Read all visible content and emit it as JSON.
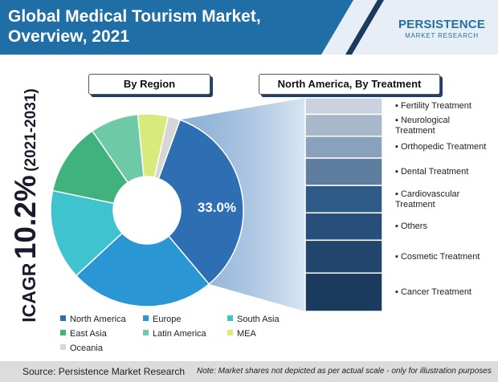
{
  "header": {
    "title_line1": "Global Medical Tourism Market,",
    "title_line2": "Overview, 2021",
    "bg_color": "#1f6fa6"
  },
  "logo": {
    "main": "PERSISTENCE",
    "sub": "MARKET RESEARCH"
  },
  "cagr": {
    "label": "ICAGR",
    "value": "10.2%",
    "period": "(2021-2031)"
  },
  "pills": {
    "region": "By Region",
    "treatment": "North America, By Treatment"
  },
  "footer": {
    "source": "Source: Persistence Market Research",
    "note": "Note: Market shares not depicted as per actual scale - only for illustration purposes"
  },
  "chart_data": [
    {
      "type": "pie",
      "title": "By Region",
      "donut": true,
      "categories": [
        "North America",
        "Europe",
        "South Asia",
        "East Asia",
        "Latin America",
        "MEA",
        "Oceania"
      ],
      "values": [
        33.0,
        24.0,
        15.0,
        12.0,
        8.0,
        5.0,
        2.0
      ],
      "colors": [
        "#2e6fb3",
        "#2a97d4",
        "#3fc3cf",
        "#3fb27e",
        "#6dc9a6",
        "#d8ea7a",
        "#d6d6d6"
      ],
      "labels": {
        "North America": "33.0%"
      },
      "legend_position": "bottom"
    },
    {
      "type": "bar",
      "title": "North America, By Treatment",
      "orientation": "stacked-column",
      "categories": [
        "Fertility Treatment",
        "Neurological Treatment",
        "Orthopedic Treatment",
        "Dental Treatment",
        "Cardiovascular Treatment",
        "Others",
        "Cosmetic Treatment",
        "Cancer Treatment"
      ],
      "values": [
        3,
        4,
        4,
        5,
        5,
        5,
        6,
        7
      ],
      "colors": [
        "#c8d3df",
        "#a7b8cb",
        "#8aa1bb",
        "#5e7d9f",
        "#2d5a86",
        "#274f79",
        "#22466d",
        "#1a3a5e"
      ]
    }
  ]
}
